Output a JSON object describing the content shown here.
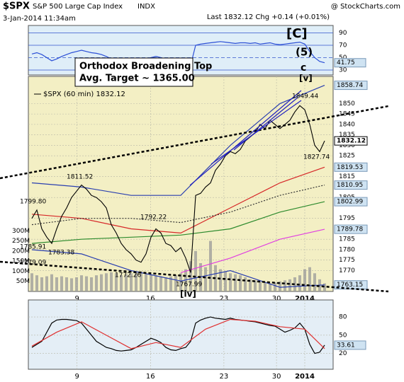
{
  "header": {
    "symbol": "$SPX",
    "name": "S&P 500 Large Cap Index",
    "exchange": "INDX",
    "brand": "@ StockCharts.com",
    "date": "3-Jan-2014 11:34am",
    "last": "Last 1832.12 Chg +0.14 (+0.01%)"
  },
  "chart_data": [
    {
      "type": "line",
      "xlim": [
        0,
        60
      ],
      "ylim": [
        22,
        102
      ],
      "yticks": [
        90,
        70,
        50,
        30
      ],
      "last_value": 41.75,
      "series": [
        {
          "color": "#2b4fd6",
          "values": [
            56,
            58,
            55,
            50,
            45,
            48,
            52,
            55,
            58,
            60,
            62,
            60,
            58,
            57,
            55,
            52,
            48,
            45,
            43,
            42,
            41,
            40,
            42,
            46,
            50,
            52,
            50,
            47,
            45,
            43,
            42,
            40,
            38,
            70,
            72,
            73,
            74,
            75,
            76,
            75,
            74,
            73,
            74,
            74,
            73,
            74,
            72,
            73,
            74,
            72,
            71,
            72,
            73,
            74,
            75,
            72,
            60,
            50,
            44,
            41.75
          ]
        }
      ]
    },
    {
      "type": "line",
      "xlim": [
        0,
        60
      ],
      "xticks": [
        {
          "value": 9.1,
          "label": "9"
        },
        {
          "value": 23.9,
          "label": "16"
        },
        {
          "value": 38.7,
          "label": "23"
        },
        {
          "value": 49.3,
          "label": "30"
        },
        {
          "value": 55,
          "label": "2014"
        }
      ],
      "ylim": [
        1760,
        1863
      ],
      "yticks": [
        1850,
        1845,
        1840,
        1835,
        1830,
        1825,
        1815,
        1805,
        1795,
        1785,
        1780,
        1775,
        1770
      ],
      "y2lim": [
        0,
        350
      ],
      "y2ticks": [
        {
          "value": 300,
          "label": "300M"
        },
        {
          "value": 250,
          "label": "250M"
        },
        {
          "value": 200,
          "label": "200M"
        },
        {
          "value": 150,
          "label": "150M"
        },
        {
          "value": 100,
          "label": "100M"
        },
        {
          "value": 50,
          "label": "50M"
        }
      ],
      "series": [
        {
          "type": "bar",
          "axis": "y2",
          "color": "#9a9a9a",
          "values": [
            90,
            80,
            70,
            75,
            85,
            70,
            75,
            70,
            65,
            70,
            80,
            75,
            70,
            80,
            85,
            90,
            95,
            90,
            80,
            85,
            90,
            95,
            100,
            90,
            85,
            80,
            75,
            70,
            75,
            80,
            90,
            110,
            150,
            200,
            140,
            120,
            250,
            130,
            110,
            100,
            90,
            85,
            80,
            70,
            60,
            55,
            50,
            45,
            40,
            45,
            50,
            55,
            60,
            70,
            80,
            110,
            120,
            90,
            60,
            40
          ]
        },
        {
          "color": "#2a3fb0",
          "x": [
            0,
            10,
            20,
            30,
            40,
            50,
            59
          ],
          "values": [
            1812,
            1810,
            1806,
            1806,
            1830,
            1850,
            1858.74
          ]
        },
        {
          "color": "#2a3fb0",
          "x": [
            0,
            10,
            20,
            30,
            40,
            50,
            59
          ],
          "values": [
            1780,
            1778,
            1770,
            1765,
            1770,
            1762,
            1763.15
          ]
        },
        {
          "color": "#d62728",
          "x": [
            0,
            10,
            20,
            30,
            40,
            50,
            59
          ],
          "values": [
            1797,
            1795,
            1790,
            1788,
            1800,
            1812,
            1819.53
          ]
        },
        {
          "color": "#333333",
          "style": "dotted",
          "x": [
            0,
            10,
            20,
            30,
            40,
            50,
            59
          ],
          "values": [
            1792,
            1795,
            1795,
            1793,
            1798,
            1806,
            1810.95
          ]
        },
        {
          "color": "#2e8b2e",
          "x": [
            0,
            10,
            20,
            30,
            40,
            50,
            59
          ],
          "values": [
            1783,
            1785,
            1786,
            1787,
            1790,
            1798,
            1802.99
          ]
        },
        {
          "color": "#e040e0",
          "x": [
            0,
            10,
            20,
            30,
            40,
            50,
            59
          ],
          "values": [
            null,
            null,
            null,
            1769,
            1776,
            1785,
            1789.78
          ]
        },
        {
          "name": "$SPX (60 min) 1832.12",
          "color": "#000000",
          "values": [
            1795,
            1799,
            1790,
            1786,
            1783,
            1790,
            1796,
            1800,
            1805,
            1808,
            1811,
            1809,
            1806,
            1805,
            1803,
            1800,
            1792,
            1788,
            1783,
            1780,
            1778,
            1775,
            1774,
            1778,
            1786,
            1790,
            1788,
            1783,
            1782,
            1779,
            1781,
            1776,
            1769,
            1806,
            1807,
            1810,
            1812,
            1818,
            1821,
            1825,
            1827,
            1826,
            1828,
            1832,
            1834,
            1836,
            1840,
            1838,
            1842,
            1840,
            1838,
            1840,
            1842,
            1846,
            1849,
            1847,
            1840,
            1830,
            1827,
            1832.12
          ]
        }
      ],
      "right_labels": [
        1858.74,
        1832.12,
        1819.53,
        1810.95,
        1802.99,
        1789.78,
        1763.15
      ],
      "price_labels": [
        1811.52,
        {
          "value": 1799.8,
          "label": "1799.80"
        },
        1785.91,
        1783.38,
        1779.09,
        1792.22,
        1772.26,
        1767.99,
        1849.44,
        1827.74
      ],
      "annotations": [
        "[C]",
        "(5)",
        "c",
        "[v]",
        "[iv]"
      ],
      "box_text": [
        "Orthodox Broadening Top",
        "Avg. Target ~ 1365.00"
      ]
    },
    {
      "type": "line",
      "xlim": [
        0,
        60
      ],
      "xticks": [
        {
          "value": 9.1,
          "label": "9"
        },
        {
          "value": 23.9,
          "label": "16"
        },
        {
          "value": 38.7,
          "label": "23"
        },
        {
          "value": 49.3,
          "label": "30"
        },
        {
          "value": 55,
          "label": "2014"
        }
      ],
      "ylim": [
        -6,
        108
      ],
      "yticks": [
        80,
        50,
        20
      ],
      "last_value": 33.61,
      "series": [
        {
          "color": "#000000",
          "values": [
            30,
            35,
            40,
            55,
            70,
            75,
            76,
            76,
            75,
            74,
            70,
            60,
            50,
            40,
            35,
            30,
            28,
            25,
            24,
            25,
            26,
            30,
            35,
            40,
            45,
            42,
            38,
            30,
            26,
            25,
            28,
            30,
            40,
            70,
            75,
            78,
            80,
            78,
            77,
            76,
            78,
            76,
            75,
            74,
            73,
            72,
            70,
            68,
            66,
            65,
            60,
            55,
            58,
            62,
            70,
            60,
            35,
            20,
            22,
            33.61
          ]
        },
        {
          "color": "#e03030",
          "x": [
            0,
            5,
            10,
            15,
            20,
            25,
            30,
            35,
            40,
            45,
            50,
            55,
            59
          ],
          "values": [
            32,
            55,
            72,
            50,
            28,
            38,
            30,
            60,
            76,
            73,
            64,
            60,
            28
          ]
        }
      ]
    }
  ]
}
